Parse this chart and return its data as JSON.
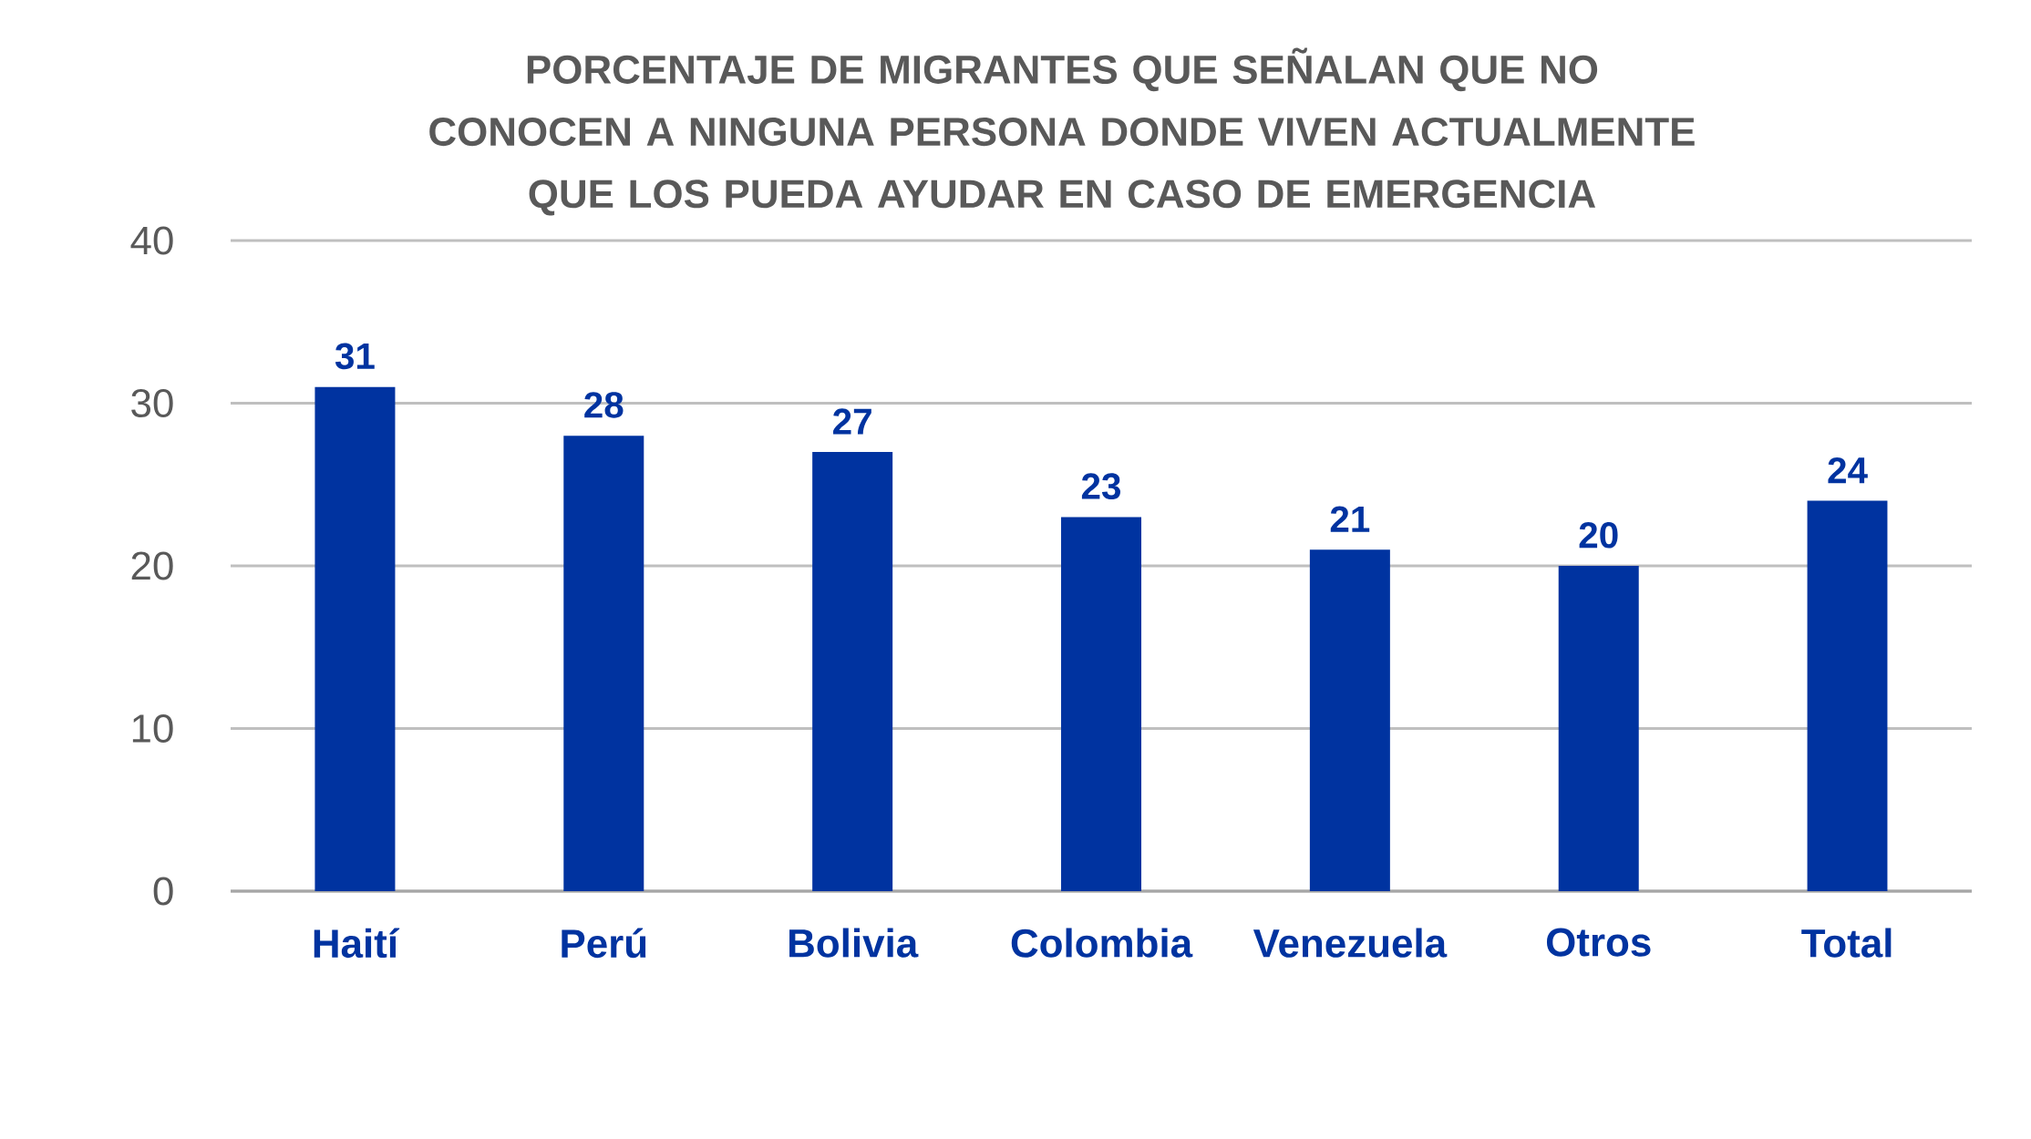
{
  "chart_data": {
    "type": "bar",
    "title": "PORCENTAJE DE MIGRANTES QUE SEÑALAN QUE NO CONOCEN A NINGUNA PERSONA DONDE VIVEN ACTUALMENTE QUE LOS PUEDA AYUDAR EN CASO DE EMERGENCIA",
    "categories": [
      "Haití",
      "Perú",
      "Bolivia",
      "Colombia",
      "Venezuela",
      "Otros",
      "Total"
    ],
    "values": [
      31,
      28,
      27,
      23,
      21,
      20,
      24
    ],
    "color": "#0033a0",
    "ylim": [
      0,
      40
    ],
    "yticks": [
      0,
      10,
      20,
      30,
      40
    ],
    "grid": "y",
    "data_labels": true
  }
}
